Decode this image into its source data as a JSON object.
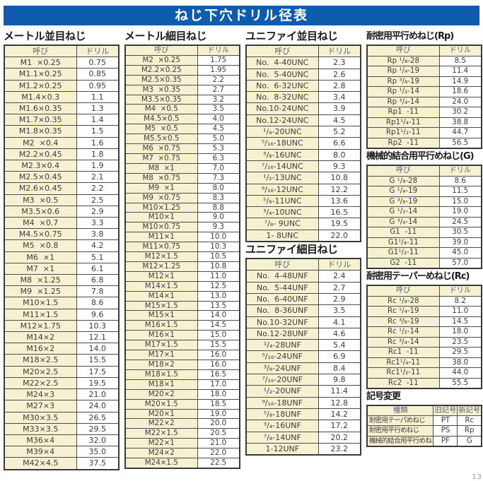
{
  "title": "ねじ下穴ドリル径表",
  "page_number_fragment": "13",
  "tables": {
    "metric_coarse": {
      "title": "メートル並目ねじ",
      "headers": [
        "呼び",
        "ドリル"
      ],
      "rows": [
        [
          "M1  ×0.25",
          "0.75"
        ],
        [
          "M1.1×0.25",
          "0.85"
        ],
        [
          "M1.2×0.25",
          "0.95"
        ],
        [
          "M1.4×0.3",
          "1.1"
        ],
        [
          "M1.6×0.35",
          "1.3"
        ],
        [
          "M1.7×0.35",
          "1.4"
        ],
        [
          "M1.8×0.35",
          "1.5"
        ],
        [
          "M2  ×0.4",
          "1.6"
        ],
        [
          "M2.2×0.45",
          "1.8"
        ],
        [
          "M2.3×0.4",
          "1.9"
        ],
        [
          "M2.5×0.45",
          "2.1"
        ],
        [
          "M2.6×0.45",
          "2.2"
        ],
        [
          "M3  ×0.5",
          "2.5"
        ],
        [
          "M3.5×0.6",
          "2.9"
        ],
        [
          "M4  ×0.7",
          "3.3"
        ],
        [
          "M4.5×0.75",
          "3.8"
        ],
        [
          "M5  ×0.8",
          "4.2"
        ],
        [
          "M6  ×1",
          "5.1"
        ],
        [
          "M7  ×1",
          "6.1"
        ],
        [
          "M8  ×1.25",
          "6.8"
        ],
        [
          "M9  ×1.25",
          "7.8"
        ],
        [
          "M10×1.5",
          "8.6"
        ],
        [
          "M11×1.5",
          "9.6"
        ],
        [
          "M12×1.75",
          "10.3"
        ],
        [
          "M14×2",
          "12.1"
        ],
        [
          "M16×2",
          "14.0"
        ],
        [
          "M18×2.5",
          "15.5"
        ],
        [
          "M20×2.5",
          "17.5"
        ],
        [
          "M22×2.5",
          "19.5"
        ],
        [
          "M24×3",
          "21.0"
        ],
        [
          "M27×3",
          "24.0"
        ],
        [
          "M30×3.5",
          "26.5"
        ],
        [
          "M33×3.5",
          "29.5"
        ],
        [
          "M36×4",
          "32.0"
        ],
        [
          "M39×4",
          "35.0"
        ],
        [
          "M42×4.5",
          "37.5"
        ]
      ]
    },
    "metric_fine": {
      "title": "メートル細目ねじ",
      "headers": [
        "呼び",
        "ドリル"
      ],
      "rows": [
        [
          "M2  ×0.25",
          "1.75"
        ],
        [
          "M2.2×0.25",
          "1.95"
        ],
        [
          "M2.5×0.35",
          "2.2"
        ],
        [
          "M3  ×0.35",
          "2.7"
        ],
        [
          "M3.5×0.35",
          "3.2"
        ],
        [
          "M4  ×0.5",
          "3.5"
        ],
        [
          "M4.5×0.5",
          "4.0"
        ],
        [
          "M5  ×0.5",
          "4.5"
        ],
        [
          "M5.5×0.5",
          "5.0"
        ],
        [
          "M6  ×0.75",
          "5.3"
        ],
        [
          "M7  ×0.75",
          "6.3"
        ],
        [
          "M8  ×1",
          "7.0"
        ],
        [
          "M8  ×0.75",
          "7.3"
        ],
        [
          "M9  ×1",
          "8.0"
        ],
        [
          "M9  ×0.75",
          "8.3"
        ],
        [
          "M10×1.25",
          "8.8"
        ],
        [
          "M10×1",
          "9.0"
        ],
        [
          "M10×0.75",
          "9.3"
        ],
        [
          "M11×1",
          "10.0"
        ],
        [
          "M11×0.75",
          "10.3"
        ],
        [
          "M12×1.5",
          "10.5"
        ],
        [
          "M12×1.25",
          "10.8"
        ],
        [
          "M12×1",
          "11.0"
        ],
        [
          "M14×1.5",
          "12.5"
        ],
        [
          "M14×1",
          "13.0"
        ],
        [
          "M15×1.5",
          "13.5"
        ],
        [
          "M15×1",
          "14.0"
        ],
        [
          "M16×1.5",
          "14.5"
        ],
        [
          "M16×1",
          "15.0"
        ],
        [
          "M17×1.5",
          "15.5"
        ],
        [
          "M17×1",
          "16.0"
        ],
        [
          "M18×2",
          "16.0"
        ],
        [
          "M18×1.5",
          "16.5"
        ],
        [
          "M18×1",
          "17.0"
        ],
        [
          "M20×2",
          "18.0"
        ],
        [
          "M20×1.5",
          "18.5"
        ],
        [
          "M20×1",
          "19.0"
        ],
        [
          "M22×2",
          "20.0"
        ],
        [
          "M22×1.5",
          "20.5"
        ],
        [
          "M22×1",
          "21.0"
        ],
        [
          "M24×2",
          "22.0"
        ],
        [
          "M24×1.5",
          "22.5"
        ]
      ]
    },
    "unified_coarse": {
      "title": "ユニファイ並目ねじ",
      "headers": [
        "呼び",
        "ドリル"
      ],
      "rows": [
        [
          "No.  4-40UNC",
          "2.3"
        ],
        [
          "No.  5-40UNC",
          "2.6"
        ],
        [
          "No.  6-32UNC",
          "2.8"
        ],
        [
          "No.  8-32UNC",
          "3.4"
        ],
        [
          "No.10-24UNC",
          "3.9"
        ],
        [
          "No.12-24UNC",
          "4.5"
        ],
        [
          "¹/₄-20UNC",
          "5.2"
        ],
        [
          "⁵/₁₆-18UNC",
          "6.6"
        ],
        [
          "³/₈-16UNC",
          "8.0"
        ],
        [
          "⁷/₁₆-14UNC",
          "9.3"
        ],
        [
          "¹/₂-13UNC",
          "10.8"
        ],
        [
          "⁹/₁₆-12UNC",
          "12.2"
        ],
        [
          "⁵/₈-11UNC",
          "13.6"
        ],
        [
          "³/₄-10UNC",
          "16.5"
        ],
        [
          "⁷/₈- 9UNC",
          "19.5"
        ],
        [
          "1- 8UNC",
          "22.0"
        ]
      ]
    },
    "unified_fine": {
      "title": "ユニファイ細目ねじ",
      "headers": [
        "呼び",
        "ドリル"
      ],
      "rows": [
        [
          "No.  4-48UNF",
          "2.4"
        ],
        [
          "No.  5-44UNF",
          "2.7"
        ],
        [
          "No.  6-40UNF",
          "2.9"
        ],
        [
          "No.  8-36UNF",
          "3.5"
        ],
        [
          "No.10-32UNF",
          "4.1"
        ],
        [
          "No.12-28UNF",
          "4.6"
        ],
        [
          "¹/₄-28UNF",
          "5.4"
        ],
        [
          "⁵/₁₆-24UNF",
          "6.9"
        ],
        [
          "³/₈-24UNF",
          "8.4"
        ],
        [
          "⁷/₁₆-20UNF",
          "9.8"
        ],
        [
          "¹/₂-20UNF",
          "11.4"
        ],
        [
          "⁹/₁₆-18UNF",
          "12.8"
        ],
        [
          "⁵/₈-18UNF",
          "14.2"
        ],
        [
          "³/₄-16UNF",
          "17.2"
        ],
        [
          "⁷/₈-14UNF",
          "20.2"
        ],
        [
          "1-12UNF",
          "23.2"
        ]
      ]
    },
    "rp": {
      "title": "耐密用平行めねじ(Rp)",
      "headers": [
        "呼び",
        "ドリル"
      ],
      "rows": [
        [
          "Rp ¹/₈-28",
          "8.5"
        ],
        [
          "Rp ¹/₄-19",
          "11.4"
        ],
        [
          "Rp ³/₈-19",
          "14.9"
        ],
        [
          "Rp ¹/₂-14",
          "18.6"
        ],
        [
          "Rp ³/₄-14",
          "24.0"
        ],
        [
          "Rp1  -11",
          "30.2"
        ],
        [
          "Rp1¹/₄-11",
          "38.8"
        ],
        [
          "Rp1¹/₂-11",
          "44.7"
        ],
        [
          "Rp2  -11",
          "56.5"
        ]
      ]
    },
    "g": {
      "title": "機械的結合用平行めねじ(G)",
      "headers": [
        "呼び",
        "ドリル"
      ],
      "rows": [
        [
          "G ¹/₈-28",
          "8.6"
        ],
        [
          "G ¹/₄-19",
          "11.5"
        ],
        [
          "G ³/₈-19",
          "15.0"
        ],
        [
          "G ¹/₂-14",
          "19.0"
        ],
        [
          "G ³/₄-14",
          "24.5"
        ],
        [
          "G1  -11",
          "30.5"
        ],
        [
          "G1¹/₄-11",
          "39.0"
        ],
        [
          "G1¹/₂-11",
          "45.0"
        ],
        [
          "G2  -11",
          "57.0"
        ]
      ]
    },
    "rc": {
      "title": "耐密用テーパーめねじ(Rc)",
      "headers": [
        "呼び",
        "ドリル"
      ],
      "rows": [
        [
          "Rc ¹/₈-28",
          "8.2"
        ],
        [
          "Rc ¹/₄-19",
          "11.0"
        ],
        [
          "Rc ³/₈-19",
          "14.5"
        ],
        [
          "Rc ¹/₂-14",
          "18.0"
        ],
        [
          "Rc ³/₄-14",
          "23.5"
        ],
        [
          "Rc1  -11",
          "29.5"
        ],
        [
          "Rc1¹/₄-11",
          "38.0"
        ],
        [
          "Rc1¹/₂-11",
          "44.0"
        ],
        [
          "Rc2  -11",
          "55.5"
        ]
      ]
    },
    "symbol_change": {
      "title": "記号変更",
      "headers": [
        "種類",
        "旧記号",
        "新記号"
      ],
      "rows": [
        [
          "耐密用テーパめねじ",
          "PT",
          "Rc"
        ],
        [
          "耐密用平行めねじ",
          "PS",
          "Rp"
        ],
        [
          "機械的結合用平行めねじ",
          "PF",
          "G"
        ]
      ]
    }
  }
}
